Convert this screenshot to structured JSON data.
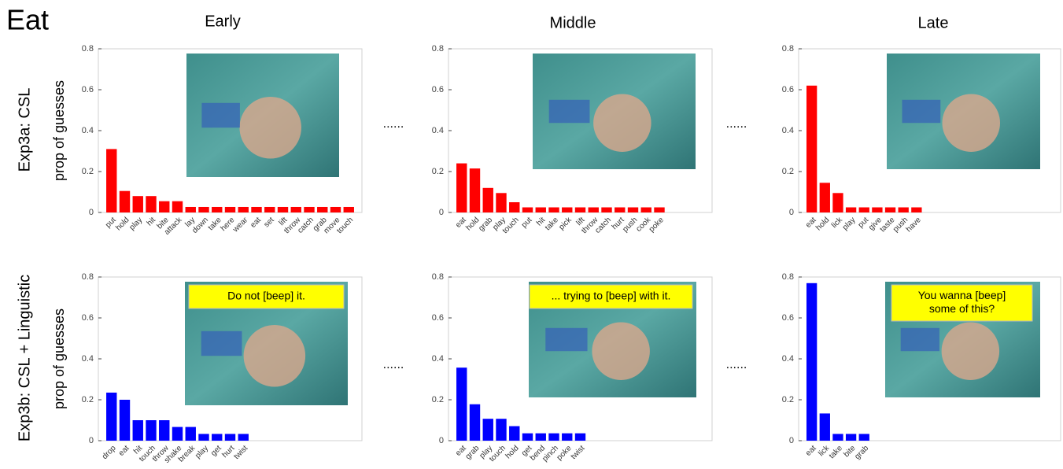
{
  "title": "Eat",
  "columns": [
    "Early",
    "Middle",
    "Late"
  ],
  "rows": [
    "Exp3a: CSL",
    "Exp3b: CSL + Linguistic"
  ],
  "separator": "......",
  "chart_data": [
    {
      "type": "bar",
      "ylabel": "prop of guesses",
      "color": "#ff0000",
      "ylim": [
        0,
        0.8
      ],
      "yticks": [
        0,
        0.2,
        0.4,
        0.6,
        0.8
      ],
      "categories": [
        "put",
        "hold",
        "play",
        "hit",
        "bite",
        "attack",
        "lay",
        "down",
        "take",
        "here",
        "wear",
        "eat",
        "set",
        "lift",
        "throw",
        "catch",
        "grab",
        "move",
        "touch"
      ],
      "values": [
        0.31,
        0.105,
        0.08,
        0.08,
        0.055,
        0.055,
        0.027,
        0.027,
        0.027,
        0.027,
        0.027,
        0.027,
        0.027,
        0.027,
        0.027,
        0.027,
        0.027,
        0.027,
        0.027
      ]
    },
    {
      "type": "bar",
      "color": "#ff0000",
      "ylim": [
        0,
        0.8
      ],
      "yticks": [
        0,
        0.2,
        0.4,
        0.6,
        0.8
      ],
      "categories": [
        "eat",
        "hold",
        "grab",
        "play",
        "touch",
        "put",
        "hit",
        "take",
        "pick",
        "lift",
        "throw",
        "catch",
        "hurt",
        "push",
        "cook",
        "poke"
      ],
      "values": [
        0.24,
        0.215,
        0.12,
        0.095,
        0.05,
        0.025,
        0.025,
        0.025,
        0.025,
        0.025,
        0.025,
        0.025,
        0.025,
        0.025,
        0.025,
        0.025
      ]
    },
    {
      "type": "bar",
      "color": "#ff0000",
      "ylim": [
        0,
        0.8
      ],
      "yticks": [
        0,
        0.2,
        0.4,
        0.6,
        0.8
      ],
      "categories": [
        "eat",
        "hold",
        "lick",
        "play",
        "put",
        "give",
        "taste",
        "push",
        "have"
      ],
      "values": [
        0.62,
        0.145,
        0.095,
        0.025,
        0.025,
        0.025,
        0.025,
        0.025,
        0.025
      ]
    },
    {
      "type": "bar",
      "ylabel": "prop of guesses",
      "color": "#0000ff",
      "ylim": [
        0,
        0.8
      ],
      "yticks": [
        0,
        0.2,
        0.4,
        0.6,
        0.8
      ],
      "annotation": [
        "Do not [beep] it."
      ],
      "categories": [
        "drop",
        "eat",
        "hit",
        "touch",
        "throw",
        "shake",
        "break",
        "play",
        "get",
        "hurt",
        "twist"
      ],
      "values": [
        0.235,
        0.2,
        0.1,
        0.1,
        0.1,
        0.067,
        0.067,
        0.033,
        0.033,
        0.033,
        0.033
      ]
    },
    {
      "type": "bar",
      "color": "#0000ff",
      "ylim": [
        0,
        0.8
      ],
      "yticks": [
        0,
        0.2,
        0.4,
        0.6,
        0.8
      ],
      "annotation": [
        "... trying to [beep] with it."
      ],
      "categories": [
        "eat",
        "grab",
        "play",
        "touch",
        "hold",
        "get",
        "bend",
        "pinch",
        "poke",
        "twist"
      ],
      "values": [
        0.357,
        0.178,
        0.107,
        0.107,
        0.071,
        0.036,
        0.036,
        0.036,
        0.036,
        0.036
      ]
    },
    {
      "type": "bar",
      "color": "#0000ff",
      "ylim": [
        0,
        0.8
      ],
      "yticks": [
        0,
        0.2,
        0.4,
        0.6,
        0.8
      ],
      "annotation": [
        "You wanna [beep]",
        "some of this?"
      ],
      "categories": [
        "eat",
        "lick",
        "take",
        "bite",
        "grab"
      ],
      "values": [
        0.77,
        0.133,
        0.033,
        0.033,
        0.033
      ]
    }
  ]
}
